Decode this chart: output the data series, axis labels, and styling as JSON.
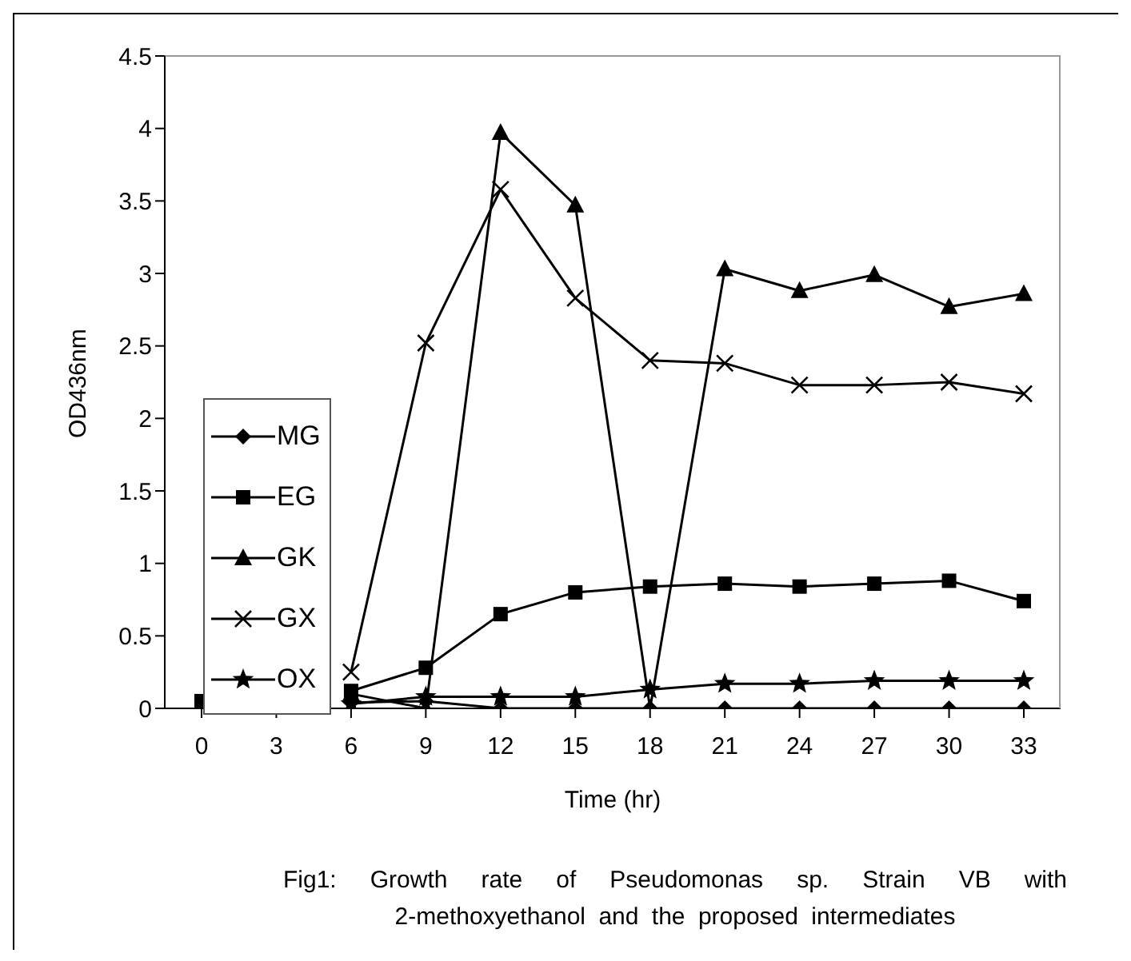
{
  "chart_data": {
    "type": "line",
    "xlabel": "Time (hr)",
    "ylabel": "OD436nm",
    "annotations": [
      "Fig1: Growth rate of Pseudomonas sp. Strain VB with 2-methoxyethanol and the proposed intermediates"
    ],
    "categories": [
      "0",
      "3",
      "6",
      "9",
      "12",
      "15",
      "18",
      "21",
      "24",
      "27",
      "30",
      "33"
    ],
    "series": [
      {
        "name": "MG",
        "color": "#000000",
        "marker": "diamond",
        "values": [
          null,
          null,
          0.04,
          0.05,
          0,
          0,
          0,
          0,
          0,
          0,
          0,
          0
        ]
      },
      {
        "name": "EG",
        "color": "#000000",
        "marker": "square",
        "values": [
          0.05,
          null,
          0.12,
          0.28,
          0.65,
          0.8,
          0.84,
          0.86,
          0.84,
          0.86,
          0.88,
          0.74
        ]
      },
      {
        "name": "GK",
        "color": "#000000",
        "marker": "triangle",
        "values": [
          null,
          null,
          0.1,
          0,
          3.97,
          3.47,
          0,
          3.03,
          2.88,
          2.99,
          2.77,
          2.86
        ]
      },
      {
        "name": "GX",
        "color": "#000000",
        "marker": "cross",
        "values": [
          null,
          null,
          0.25,
          2.52,
          3.58,
          2.83,
          2.4,
          2.38,
          2.23,
          2.23,
          2.25,
          2.17
        ]
      },
      {
        "name": "OX",
        "color": "#000000",
        "marker": "star",
        "values": [
          null,
          null,
          0.03,
          0.08,
          0.08,
          0.08,
          0.13,
          0.17,
          0.17,
          0.19,
          0.19,
          0.19
        ]
      }
    ],
    "ylim": [
      0,
      4.5
    ],
    "yticks": [
      0,
      0.5,
      1,
      1.5,
      2,
      2.5,
      3,
      3.5,
      4,
      4.5
    ],
    "grid": false,
    "legend": "bottom left",
    "line_style": "solid"
  }
}
